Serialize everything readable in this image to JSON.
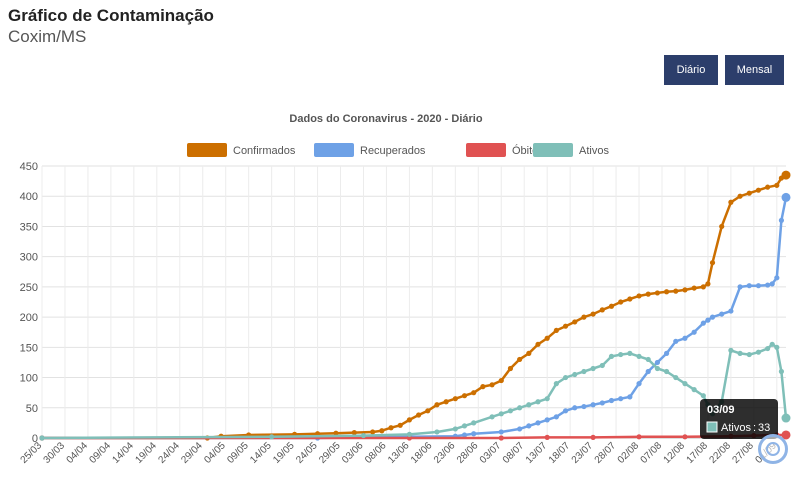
{
  "header": {
    "title": "Gráfico de Contaminação",
    "subtitle": "Coxim/MS"
  },
  "buttons": {
    "daily": "Diário",
    "monthly": "Mensal"
  },
  "tooltip": {
    "date": "03/09",
    "label": "Ativos",
    "separator": ":",
    "value": "33"
  },
  "icons": {
    "scroll_top": "circle-arrow-up-icon"
  },
  "chart_data": {
    "type": "line",
    "title": "Dados do Coronavirus - 2020 - Diário",
    "xlabel": "",
    "ylabel": "",
    "ylim": [
      0,
      450
    ],
    "yticks": [
      0,
      50,
      100,
      150,
      200,
      250,
      300,
      350,
      400,
      450
    ],
    "grid": true,
    "legend_position": "top",
    "categories": [
      "25/03",
      "30/03",
      "04/04",
      "09/04",
      "14/04",
      "19/04",
      "24/04",
      "29/04",
      "04/05",
      "09/05",
      "14/05",
      "19/05",
      "24/05",
      "29/05",
      "03/06",
      "08/06",
      "13/06",
      "18/06",
      "23/06",
      "28/06",
      "03/07",
      "08/07",
      "13/07",
      "18/07",
      "23/07",
      "28/07",
      "02/08",
      "07/08",
      "12/08",
      "17/08",
      "22/08",
      "27/08",
      "01/09"
    ],
    "series": [
      {
        "name": "Confirmados",
        "color": "#cc6f00",
        "x": [
          0,
          36,
          39,
          45,
          55,
          60,
          64,
          68,
          72,
          74,
          76,
          78,
          80,
          82,
          84,
          86,
          88,
          90,
          92,
          94,
          96,
          98,
          100,
          102,
          104,
          106,
          108,
          110,
          112,
          114,
          116,
          118,
          120,
          122,
          124,
          126,
          128,
          130,
          132,
          134,
          136,
          138,
          140,
          142,
          144,
          145,
          146,
          148,
          150,
          152,
          154,
          156,
          158,
          160,
          161,
          162
        ],
        "values": [
          0,
          0,
          3,
          5,
          6,
          7,
          8,
          9,
          10,
          12,
          17,
          21,
          30,
          38,
          45,
          55,
          60,
          65,
          70,
          75,
          85,
          88,
          95,
          115,
          130,
          140,
          155,
          165,
          178,
          185,
          192,
          200,
          205,
          212,
          218,
          225,
          230,
          235,
          238,
          240,
          242,
          243,
          245,
          248,
          250,
          255,
          290,
          350,
          390,
          400,
          405,
          410,
          415,
          418,
          430,
          435
        ]
      },
      {
        "name": "Recuperados",
        "color": "#6ea1e6",
        "x": [
          0,
          60,
          80,
          90,
          92,
          94,
          100,
          104,
          106,
          108,
          110,
          112,
          114,
          116,
          118,
          120,
          122,
          124,
          126,
          128,
          130,
          132,
          134,
          136,
          138,
          140,
          142,
          144,
          145,
          146,
          148,
          150,
          152,
          154,
          156,
          158,
          159,
          160,
          161,
          162
        ],
        "values": [
          0,
          0,
          2,
          3,
          5,
          7,
          10,
          15,
          20,
          25,
          30,
          35,
          45,
          50,
          52,
          55,
          58,
          62,
          65,
          68,
          90,
          110,
          125,
          140,
          160,
          165,
          175,
          190,
          195,
          200,
          205,
          210,
          250,
          252,
          252,
          253,
          255,
          265,
          360,
          398
        ]
      },
      {
        "name": "Óbitos",
        "color": "#e05252",
        "x": [
          0,
          80,
          100,
          110,
          120,
          130,
          140,
          150,
          155,
          160,
          162
        ],
        "values": [
          0,
          0,
          0,
          1,
          1,
          2,
          2,
          3,
          4,
          5,
          5
        ]
      },
      {
        "name": "Ativos",
        "color": "#7fbfb8",
        "x": [
          0,
          50,
          70,
          80,
          86,
          90,
          92,
          94,
          98,
          100,
          102,
          104,
          106,
          108,
          110,
          112,
          114,
          116,
          118,
          120,
          122,
          124,
          126,
          128,
          130,
          132,
          134,
          136,
          138,
          140,
          142,
          144,
          145,
          146,
          148,
          150,
          152,
          154,
          156,
          158,
          159,
          160,
          161,
          162
        ],
        "values": [
          0,
          2,
          4,
          6,
          10,
          15,
          20,
          25,
          35,
          40,
          45,
          50,
          55,
          60,
          65,
          90,
          100,
          105,
          110,
          115,
          120,
          135,
          138,
          140,
          135,
          130,
          115,
          110,
          100,
          90,
          80,
          70,
          55,
          40,
          60,
          145,
          140,
          138,
          142,
          148,
          155,
          150,
          110,
          33
        ]
      }
    ]
  }
}
